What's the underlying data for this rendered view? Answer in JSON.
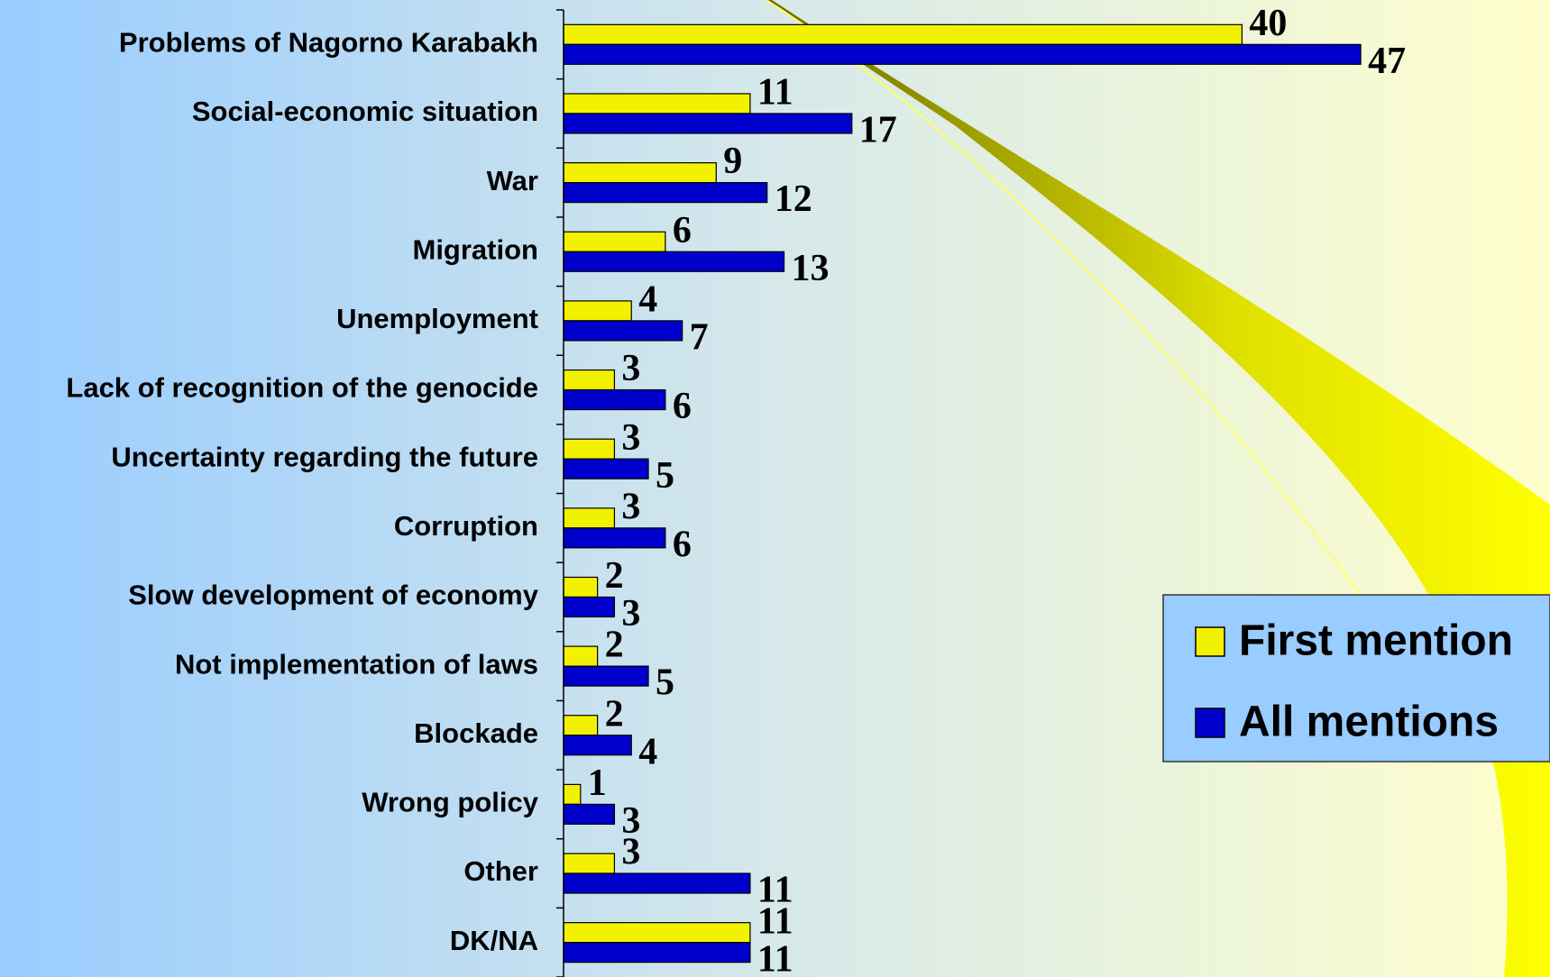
{
  "chart_data": {
    "type": "bar",
    "orientation": "horizontal",
    "categories": [
      "Problems of Nagorno Karabakh",
      "Social-economic situation",
      "War",
      "Migration",
      "Unemployment",
      "Lack of recognition of the genocide",
      "Uncertainty regarding the future",
      "Corruption",
      "Slow development of economy",
      "Not implementation of laws",
      "Blockade",
      "Wrong policy",
      "Other",
      "DK/NA"
    ],
    "series": [
      {
        "name": "First mention",
        "color": "#f2f200",
        "values": [
          40,
          11,
          9,
          6,
          4,
          3,
          3,
          3,
          2,
          2,
          2,
          1,
          3,
          11
        ]
      },
      {
        "name": "All mentions",
        "color": "#0000cc",
        "values": [
          47,
          17,
          12,
          13,
          7,
          6,
          5,
          6,
          3,
          5,
          4,
          3,
          11,
          11
        ]
      }
    ],
    "xlim": [
      0,
      58
    ],
    "legend": "right"
  }
}
